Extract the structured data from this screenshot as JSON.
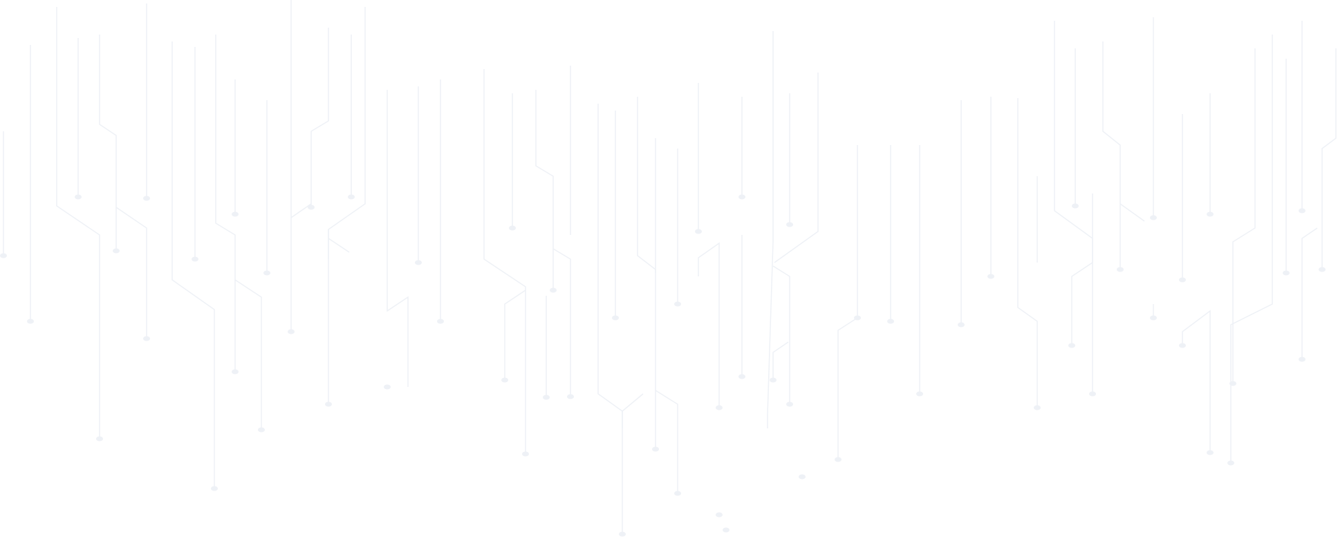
{
  "background": {
    "pattern": "circuit-traces",
    "background_color": "#ffffff",
    "line_color": "#eef1f6"
  }
}
